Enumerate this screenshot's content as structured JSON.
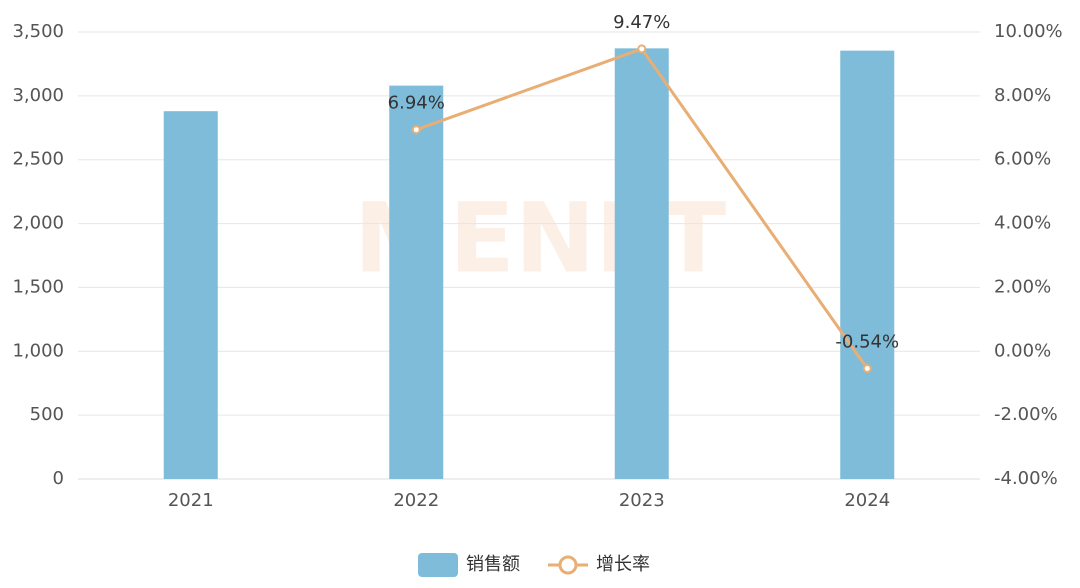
{
  "chart_data": {
    "type": "bar",
    "watermark": "MENET",
    "categories": [
      "2021",
      "2022",
      "2023",
      "2024"
    ],
    "series": [
      {
        "name": "销售额",
        "type": "bar",
        "color": "#7ebcd9",
        "values": [
          2880,
          3080,
          3372,
          3354
        ]
      },
      {
        "name": "增长率",
        "type": "line",
        "axis": "y2",
        "color": "#e8ae74",
        "values": [
          null,
          6.94,
          9.47,
          -0.54
        ],
        "value_labels": [
          null,
          "6.94%",
          "9.47%",
          "-0.54%"
        ]
      }
    ],
    "ylim": [
      0,
      3500
    ],
    "yticks": [
      0,
      500,
      {
        "value": 1000,
        "label": "1,000"
      },
      {
        "value": 1500,
        "label": "1,500"
      },
      {
        "value": 2000,
        "label": "2,000"
      },
      {
        "value": 2500,
        "label": "2,500"
      },
      {
        "value": 3000,
        "label": "3,000"
      },
      {
        "value": 3500,
        "label": "3,500"
      }
    ],
    "y2lim": [
      -4,
      10
    ],
    "y2ticks": [
      {
        "value": -4,
        "label": "-4.00%"
      },
      {
        "value": -2,
        "label": "-2.00%"
      },
      {
        "value": 0,
        "label": "0.00%"
      },
      {
        "value": 2,
        "label": "2.00%"
      },
      {
        "value": 4,
        "label": "4.00%"
      },
      {
        "value": 6,
        "label": "6.00%"
      },
      {
        "value": 8,
        "label": "8.00%"
      },
      {
        "value": 10,
        "label": "10.00%"
      }
    ],
    "grid": true
  }
}
